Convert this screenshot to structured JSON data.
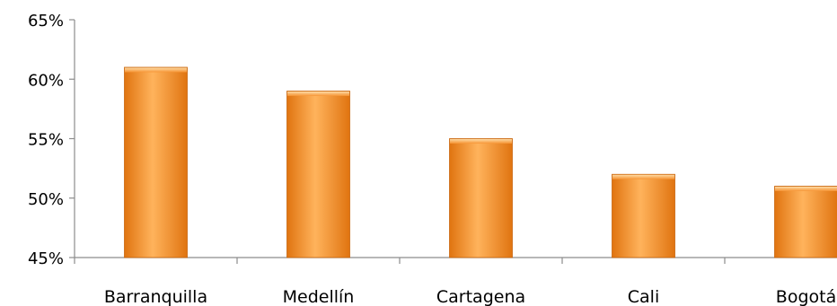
{
  "chart_data": {
    "type": "bar",
    "categories": [
      "Barranquilla",
      "Medellín",
      "Cartagena",
      "Cali",
      "Bogotá"
    ],
    "values": [
      61,
      59,
      55,
      52,
      51
    ],
    "ylim": [
      45,
      65
    ],
    "yticks": [
      "45%",
      "50%",
      "55%",
      "60%",
      "65%"
    ],
    "ytick_values": [
      45,
      50,
      55,
      60,
      65
    ],
    "grid": false,
    "legend": "none",
    "bar_color": "#F79433",
    "bar_color_light": "#FFB35C",
    "bar_color_dark": "#E07410",
    "axis_color": "#8C8C8C"
  }
}
